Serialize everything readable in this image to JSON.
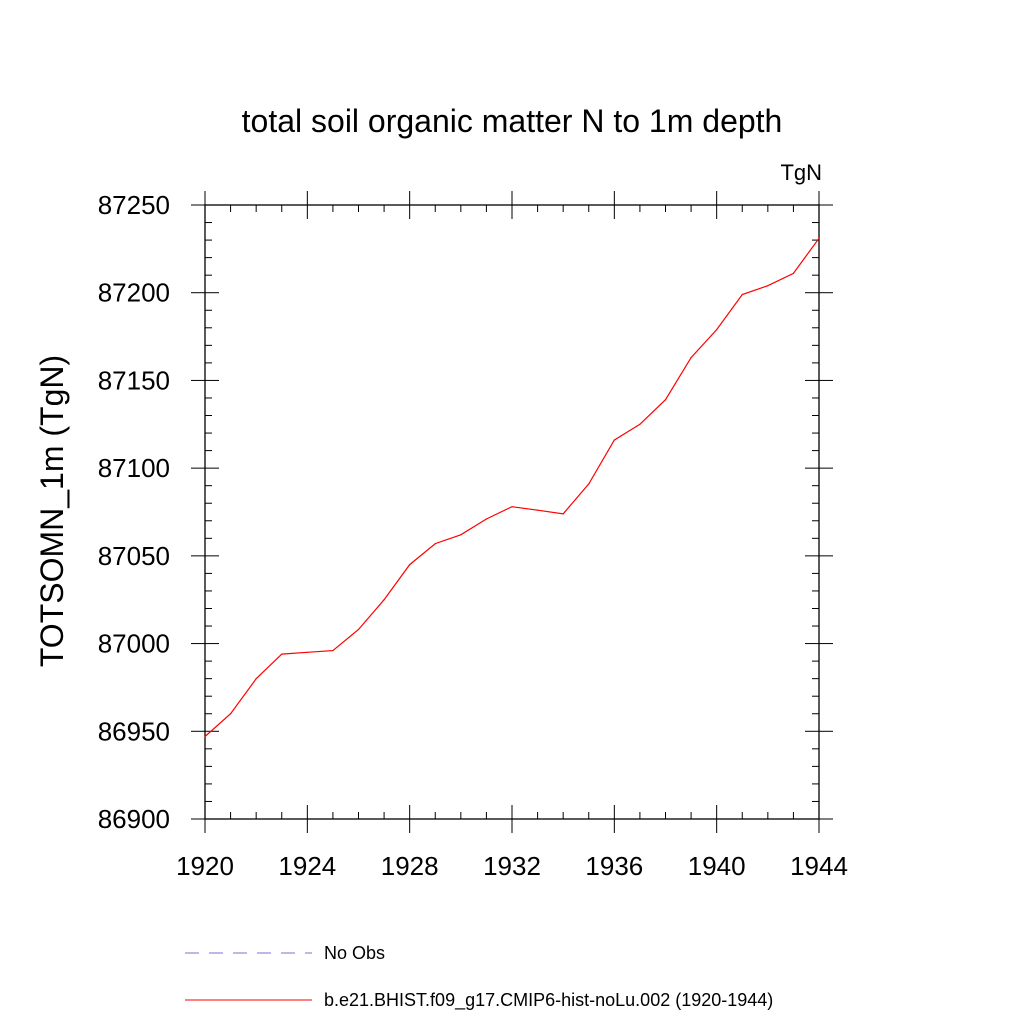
{
  "chart_data": {
    "type": "line",
    "title": "total soil organic matter N to 1m depth",
    "units": "TgN",
    "xlabel": "",
    "ylabel": "TOTSOMN_1m  (TgN)",
    "xlim": [
      1920,
      1944
    ],
    "ylim": [
      86900,
      87250
    ],
    "xticks": [
      1920,
      1924,
      1928,
      1932,
      1936,
      1940,
      1944
    ],
    "yticks": [
      86900,
      86950,
      87000,
      87050,
      87100,
      87150,
      87200,
      87250
    ],
    "grid": false,
    "legend_position": "bottom",
    "series": [
      {
        "name": "No Obs",
        "color": "#7b6fd6",
        "dash": true,
        "x": [],
        "y": []
      },
      {
        "name": "b.e21.BHIST.f09_g17.CMIP6-hist-noLu.002 (1920-1944)",
        "color": "#ff0000",
        "dash": false,
        "x": [
          1920,
          1921,
          1922,
          1923,
          1924,
          1925,
          1926,
          1927,
          1928,
          1929,
          1930,
          1931,
          1932,
          1933,
          1934,
          1935,
          1936,
          1937,
          1938,
          1939,
          1940,
          1941,
          1942,
          1943,
          1944
        ],
        "y": [
          86947,
          86960,
          86980,
          86994,
          86995,
          86996,
          87008,
          87025,
          87045,
          87057,
          87062,
          87071,
          87078,
          87076,
          87074,
          87091,
          87116,
          87125,
          87139,
          87163,
          87179,
          87199,
          87204,
          87211,
          87231
        ]
      }
    ]
  }
}
